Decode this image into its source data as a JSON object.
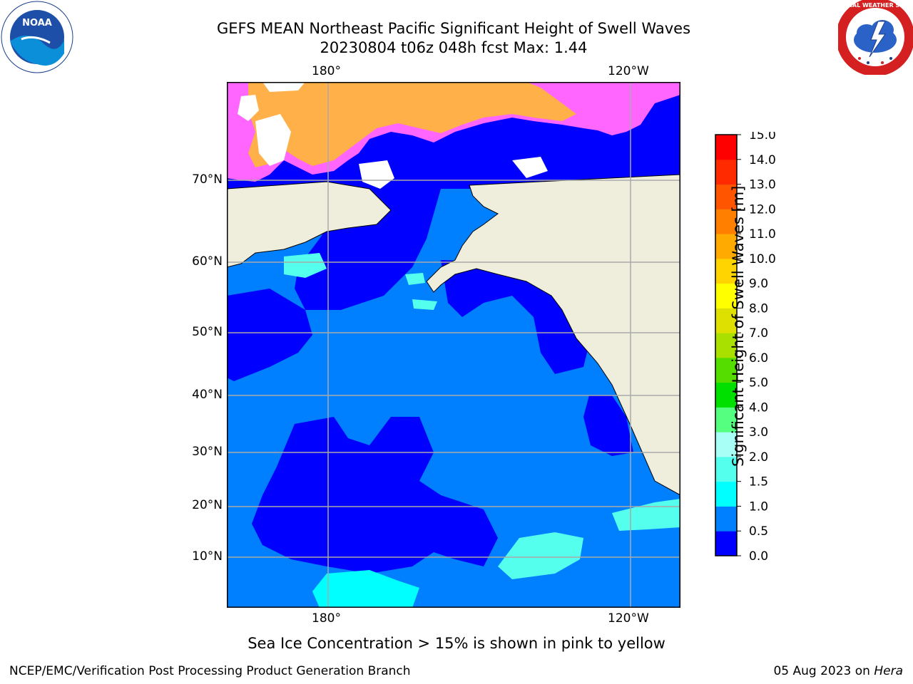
{
  "title_line1": "GEFS MEAN Northeast Pacific Significant Height of Swell Waves",
  "title_line2": "20230804 t06z 048h fcst   Max: 1.44",
  "map": {
    "lon_labels_top": [
      "180°",
      "120°W"
    ],
    "lon_labels_bottom": [
      "180°",
      "120°W"
    ],
    "lat_labels": [
      "70°N",
      "60°N",
      "50°N",
      "40°N",
      "30°N",
      "20°N",
      "10°N"
    ],
    "colors": {
      "land": "#efeedc",
      "wave_0_0p5": "#0000ff",
      "wave_0p5_1": "#0080ff",
      "wave_1_1p5": "#00ffff",
      "wave_1p5_2": "#55ffee",
      "ice_pink": "#ff66ff",
      "ice_orange": "#ffb048",
      "grid": "#a9a9a9"
    }
  },
  "colorbar": {
    "title": "Significant Height of Swell Waves [m]",
    "tick_labels": [
      "0.0",
      "0.5",
      "1.0",
      "1.5",
      "2.0",
      "3.0",
      "4.0",
      "5.0",
      "6.0",
      "7.0",
      "8.0",
      "9.0",
      "10.0",
      "11.0",
      "12.0",
      "13.0",
      "14.0",
      "15.0"
    ],
    "colors": [
      "#0000ff",
      "#0080ff",
      "#00ffff",
      "#55ffee",
      "#a8fff5",
      "#55ff80",
      "#00e000",
      "#55dd00",
      "#aae000",
      "#dde000",
      "#ffff00",
      "#ffd400",
      "#ffaa00",
      "#ff8000",
      "#ff5500",
      "#ff2a00",
      "#ff0000"
    ]
  },
  "note": "Sea Ice Concentration > 15% is shown in pink to yellow",
  "footer_left": "NCEP/EMC/Verification Post Processing Product Generation Branch",
  "footer_right_date": "05 Aug 2023 on",
  "footer_right_machine": "Hera",
  "logos": {
    "noaa": "NOAA",
    "nws": "NATIONAL WEATHER SERVICE"
  }
}
